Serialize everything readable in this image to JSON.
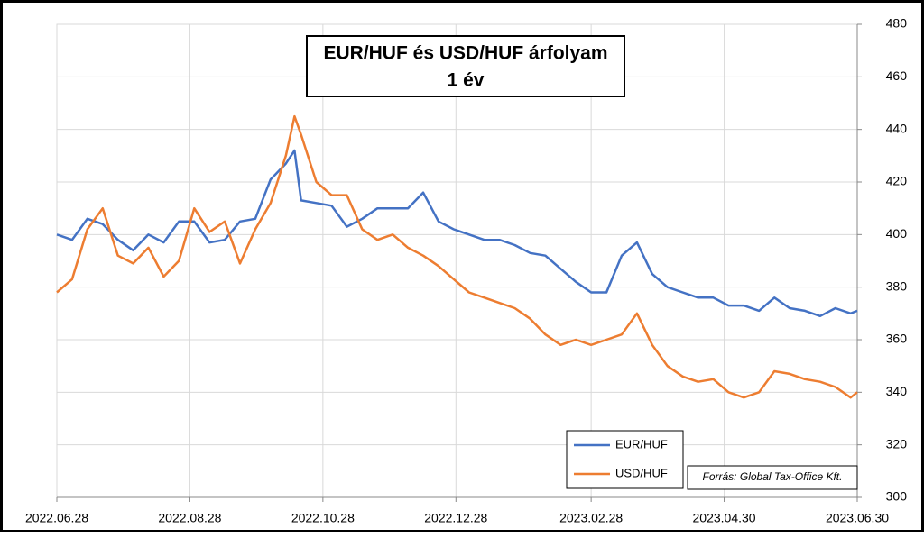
{
  "chart_data": {
    "type": "line",
    "title": "EUR/HUF és USD/HUF árfolyam",
    "subtitle": "1 év",
    "source": "Forrás: Global Tax-Office Kft.",
    "x": [
      "2022.06.28",
      "2022.07.05",
      "2022.07.12",
      "2022.07.19",
      "2022.07.26",
      "2022.08.02",
      "2022.08.09",
      "2022.08.16",
      "2022.08.23",
      "2022.08.30",
      "2022.09.06",
      "2022.09.13",
      "2022.09.20",
      "2022.09.27",
      "2022.10.04",
      "2022.10.11",
      "2022.10.15",
      "2022.10.18",
      "2022.10.25",
      "2022.11.01",
      "2022.11.08",
      "2022.11.15",
      "2022.11.22",
      "2022.11.29",
      "2022.12.06",
      "2022.12.13",
      "2022.12.20",
      "2022.12.27",
      "2023.01.03",
      "2023.01.10",
      "2023.01.17",
      "2023.01.24",
      "2023.01.31",
      "2023.02.07",
      "2023.02.14",
      "2023.02.21",
      "2023.02.28",
      "2023.03.07",
      "2023.03.14",
      "2023.03.21",
      "2023.03.28",
      "2023.04.04",
      "2023.04.11",
      "2023.04.18",
      "2023.04.25",
      "2023.05.02",
      "2023.05.09",
      "2023.05.16",
      "2023.05.23",
      "2023.05.30",
      "2023.06.06",
      "2023.06.13",
      "2023.06.20",
      "2023.06.27",
      "2023.06.30"
    ],
    "series": [
      {
        "name": "EUR/HUF",
        "color": "#4472c4",
        "values": [
          400,
          398,
          406,
          404,
          398,
          394,
          400,
          397,
          405,
          405,
          397,
          398,
          405,
          406,
          421,
          427,
          432,
          413,
          412,
          411,
          403,
          406,
          410,
          410,
          410,
          416,
          405,
          402,
          400,
          398,
          398,
          396,
          393,
          392,
          387,
          382,
          378,
          378,
          392,
          397,
          385,
          380,
          378,
          376,
          376,
          373,
          373,
          371,
          376,
          372,
          371,
          369,
          372,
          370,
          371
        ]
      },
      {
        "name": "USD/HUF",
        "color": "#ed7d31",
        "values": [
          378,
          383,
          402,
          410,
          392,
          389,
          395,
          384,
          390,
          410,
          401,
          405,
          389,
          402,
          412,
          430,
          445,
          438,
          420,
          415,
          415,
          402,
          398,
          400,
          395,
          392,
          388,
          383,
          378,
          376,
          374,
          372,
          368,
          362,
          358,
          360,
          358,
          360,
          362,
          370,
          358,
          350,
          346,
          344,
          345,
          340,
          338,
          340,
          348,
          347,
          345,
          344,
          342,
          338,
          340
        ]
      }
    ],
    "xlim": [
      "2022.06.28",
      "2023.06.30"
    ],
    "xticks": [
      "2022.06.28",
      "2022.08.28",
      "2022.10.28",
      "2022.12.28",
      "2023.02.28",
      "2023.04.30",
      "2023.06.30"
    ],
    "ylim": [
      300,
      480
    ],
    "yticks": [
      300,
      320,
      340,
      360,
      380,
      400,
      420,
      440,
      460,
      480
    ],
    "grid": true,
    "legend": "lower right"
  }
}
